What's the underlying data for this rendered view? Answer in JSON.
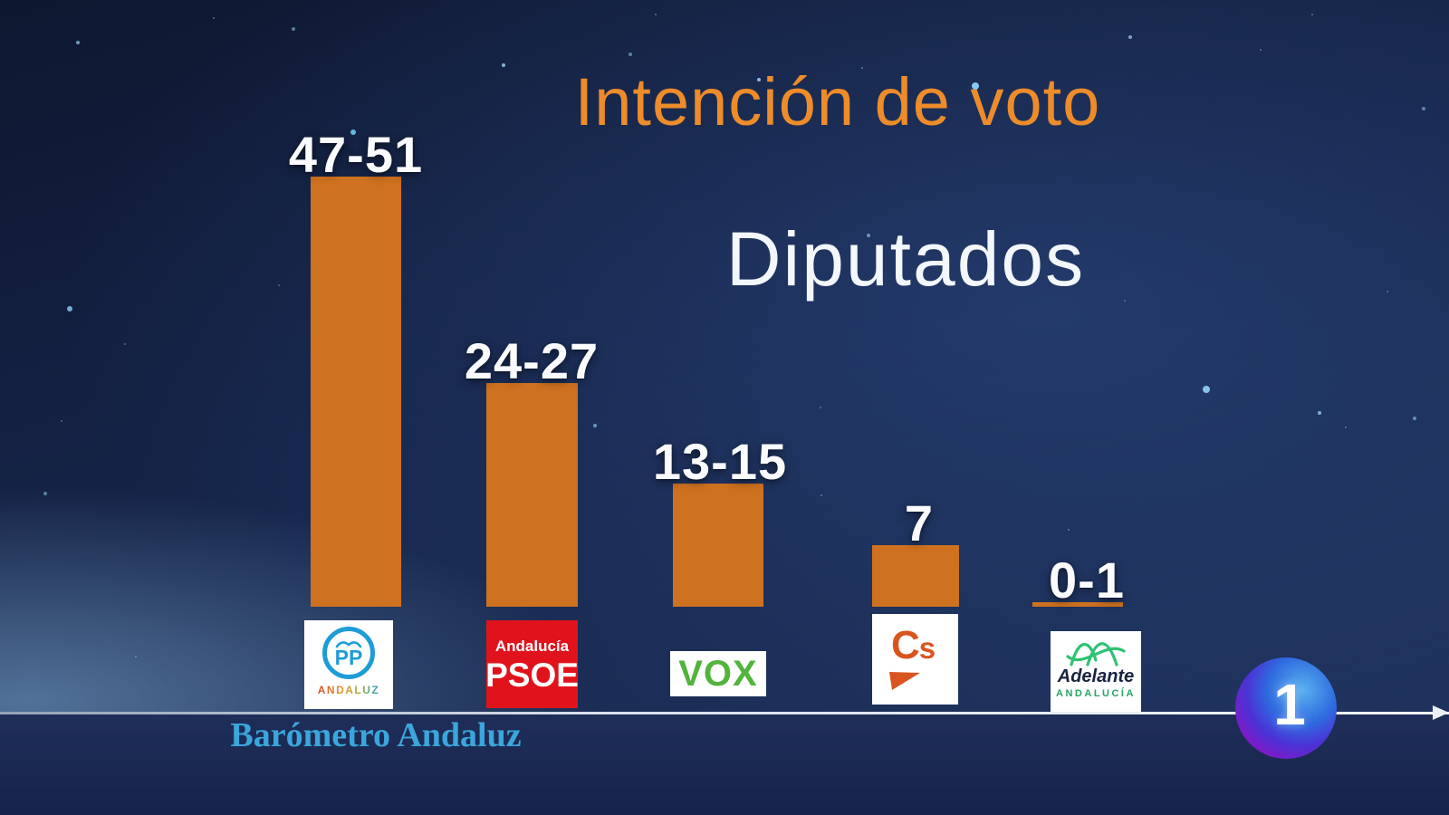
{
  "broadcast": {
    "title": "Intención de voto",
    "subtitle": "Diputados",
    "source_label": "Barómetro Andaluz",
    "channel_number": "1"
  },
  "chart_data": {
    "type": "bar",
    "title": "Intención de voto",
    "subtitle": "Diputados",
    "unit": "diputados",
    "categories": [
      "PP Andaluz",
      "PSOE Andalucía",
      "VOX",
      "Ciudadanos (Cs)",
      "Adelante Andalucía"
    ],
    "values_range": [
      "47-51",
      "24-27",
      "13-15",
      "7",
      "0-1"
    ],
    "values_mid": [
      49,
      25.5,
      14,
      7,
      0.5
    ],
    "ylim": [
      0,
      52
    ],
    "grid": false,
    "legend": false,
    "bar_color": "#CE7120",
    "value_label_color": "#FFFFFF",
    "title_color": "#ED8C2B",
    "subtitle_color": "#F3F6FA"
  },
  "logos": {
    "pp": {
      "text": "PP",
      "sub": "ANDALUZ"
    },
    "psoe": {
      "top": "Andalucía",
      "text": "PSOE"
    },
    "vox": {
      "text": "VOX"
    },
    "cs": {
      "text": "C",
      "small": "s"
    },
    "adelante": {
      "text": "Adelante",
      "sub": "ANDALUCÍA"
    }
  }
}
